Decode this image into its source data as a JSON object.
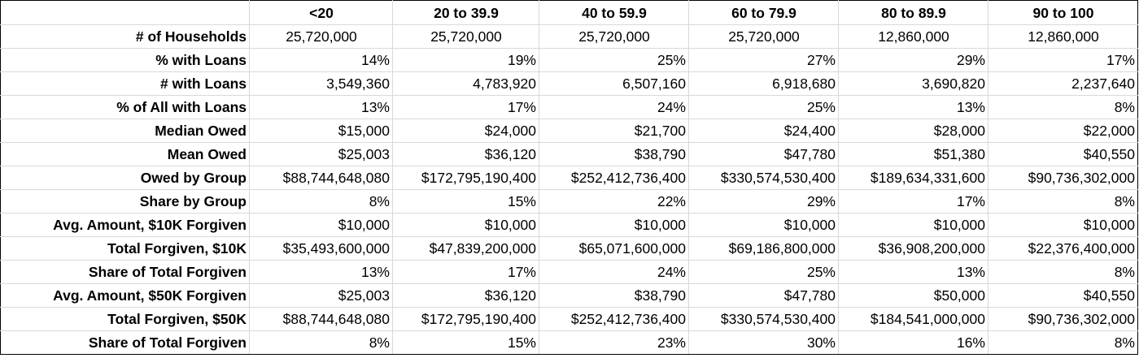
{
  "table": {
    "headers": [
      "",
      "<20",
      "20 to 39.9",
      "40 to 59.9",
      "60 to 79.9",
      "80 to 89.9",
      "90 to 100"
    ],
    "rows": [
      {
        "label": "# of Households",
        "align": "center",
        "values": [
          "25,720,000",
          "25,720,000",
          "25,720,000",
          "25,720,000",
          "12,860,000",
          "12,860,000"
        ]
      },
      {
        "label": "% with Loans",
        "align": "right",
        "values": [
          "14%",
          "19%",
          "25%",
          "27%",
          "29%",
          "17%"
        ]
      },
      {
        "label": "# with Loans",
        "align": "right",
        "values": [
          "3,549,360",
          "4,783,920",
          "6,507,160",
          "6,918,680",
          "3,690,820",
          "2,237,640"
        ]
      },
      {
        "label": "% of All with Loans",
        "align": "right",
        "values": [
          "13%",
          "17%",
          "24%",
          "25%",
          "13%",
          "8%"
        ]
      },
      {
        "label": "Median Owed",
        "align": "right",
        "values": [
          "$15,000",
          "$24,000",
          "$21,700",
          "$24,400",
          "$28,000",
          "$22,000"
        ]
      },
      {
        "label": "Mean Owed",
        "align": "right",
        "values": [
          "$25,003",
          "$36,120",
          "$38,790",
          "$47,780",
          "$51,380",
          "$40,550"
        ]
      },
      {
        "label": "Owed by Group",
        "align": "right",
        "values": [
          "$88,744,648,080",
          "$172,795,190,400",
          "$252,412,736,400",
          "$330,574,530,400",
          "$189,634,331,600",
          "$90,736,302,000"
        ]
      },
      {
        "label": "Share by Group",
        "align": "right",
        "values": [
          "8%",
          "15%",
          "22%",
          "29%",
          "17%",
          "8%"
        ]
      },
      {
        "label": "Avg. Amount, $10K Forgiven",
        "align": "right",
        "values": [
          "$10,000",
          "$10,000",
          "$10,000",
          "$10,000",
          "$10,000",
          "$10,000"
        ]
      },
      {
        "label": "Total Forgiven, $10K",
        "align": "right",
        "values": [
          "$35,493,600,000",
          "$47,839,200,000",
          "$65,071,600,000",
          "$69,186,800,000",
          "$36,908,200,000",
          "$22,376,400,000"
        ]
      },
      {
        "label": "Share of Total Forgiven",
        "align": "right",
        "values": [
          "13%",
          "17%",
          "24%",
          "25%",
          "13%",
          "8%"
        ]
      },
      {
        "label": "Avg. Amount, $50K Forgiven",
        "align": "right",
        "values": [
          "$25,003",
          "$36,120",
          "$38,790",
          "$47,780",
          "$50,000",
          "$40,550"
        ]
      },
      {
        "label": "Total Forgiven, $50K",
        "align": "right",
        "values": [
          "$88,744,648,080",
          "$172,795,190,400",
          "$252,412,736,400",
          "$330,574,530,400",
          "$184,541,000,000",
          "$90,736,302,000"
        ]
      },
      {
        "label": "Share of Total Forgiven",
        "align": "right",
        "values": [
          "8%",
          "15%",
          "23%",
          "30%",
          "16%",
          "8%"
        ]
      }
    ]
  }
}
